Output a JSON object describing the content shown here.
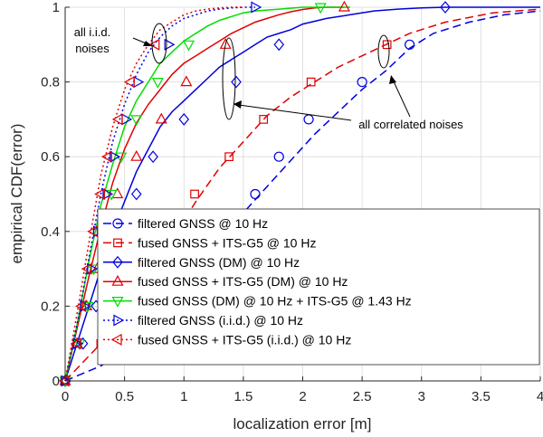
{
  "chart_data": {
    "type": "line",
    "xlabel": "localization error [m]",
    "ylabel": "empirical CDF(error)",
    "xlim": [
      0,
      4
    ],
    "ylim": [
      0,
      1
    ],
    "grid": true,
    "legend_position": "lower-right",
    "xticks": [
      {
        "v": 0,
        "label": "0"
      },
      {
        "v": 0.5,
        "label": "0.5"
      },
      {
        "v": 1,
        "label": "1"
      },
      {
        "v": 1.5,
        "label": "1.5"
      },
      {
        "v": 2,
        "label": "2"
      },
      {
        "v": 2.5,
        "label": "2.5"
      },
      {
        "v": 3,
        "label": "3"
      },
      {
        "v": 3.5,
        "label": "3.5"
      },
      {
        "v": 4,
        "label": "4"
      }
    ],
    "yticks": [
      {
        "v": 0,
        "label": "0"
      },
      {
        "v": 0.2,
        "label": "0.2"
      },
      {
        "v": 0.4,
        "label": "0.4"
      },
      {
        "v": 0.6,
        "label": "0.6"
      },
      {
        "v": 0.8,
        "label": "0.8"
      },
      {
        "v": 1,
        "label": "1"
      }
    ],
    "series": [
      {
        "name": "filtered GNSS @ 10 Hz",
        "color": "#0000e0",
        "dash": "dashed",
        "marker": "circle",
        "x": [
          0,
          0.15,
          0.3,
          0.5,
          0.7,
          0.9,
          1.1,
          1.3,
          1.5,
          1.7,
          1.9,
          2.1,
          2.3,
          2.5,
          2.7,
          2.9,
          3.1,
          3.4,
          3.7,
          4.0
        ],
        "y": [
          0,
          0.02,
          0.04,
          0.08,
          0.14,
          0.22,
          0.3,
          0.38,
          0.45,
          0.52,
          0.59,
          0.66,
          0.72,
          0.78,
          0.83,
          0.89,
          0.93,
          0.96,
          0.98,
          0.99
        ],
        "markers": [
          [
            0,
            0
          ],
          [
            0.54,
            0.1
          ],
          [
            0.9,
            0.2
          ],
          [
            1.17,
            0.3
          ],
          [
            1.4,
            0.4
          ],
          [
            1.6,
            0.5
          ],
          [
            1.8,
            0.6
          ],
          [
            2.05,
            0.7
          ],
          [
            2.5,
            0.8
          ],
          [
            2.9,
            0.9
          ]
        ]
      },
      {
        "name": "fused GNSS + ITS-G5 @ 10 Hz",
        "color": "#e00000",
        "dash": "dashed",
        "marker": "square",
        "x": [
          0,
          0.15,
          0.3,
          0.5,
          0.7,
          0.9,
          1.1,
          1.3,
          1.5,
          1.7,
          1.9,
          2.1,
          2.3,
          2.5,
          2.7,
          2.9,
          3.2,
          3.6,
          4.0
        ],
        "y": [
          0,
          0.05,
          0.1,
          0.18,
          0.28,
          0.38,
          0.48,
          0.57,
          0.64,
          0.71,
          0.76,
          0.8,
          0.84,
          0.87,
          0.9,
          0.93,
          0.96,
          0.985,
          0.995
        ],
        "markers": [
          [
            0,
            0
          ],
          [
            0.3,
            0.1
          ],
          [
            0.53,
            0.2
          ],
          [
            0.72,
            0.3
          ],
          [
            0.9,
            0.4
          ],
          [
            1.09,
            0.5
          ],
          [
            1.38,
            0.6
          ],
          [
            1.67,
            0.7
          ],
          [
            2.07,
            0.8
          ],
          [
            2.71,
            0.9
          ]
        ]
      },
      {
        "name": "filtered GNSS (DM) @ 10 Hz",
        "color": "#0000e0",
        "dash": "solid",
        "marker": "diamond",
        "x": [
          0,
          0.1,
          0.2,
          0.3,
          0.4,
          0.5,
          0.6,
          0.7,
          0.8,
          0.9,
          1.0,
          1.1,
          1.2,
          1.3,
          1.4,
          1.5,
          1.6,
          1.7,
          1.8,
          1.9,
          2.0,
          2.2,
          2.4,
          2.6,
          2.8,
          3.0,
          3.2,
          3.6,
          4.0
        ],
        "y": [
          0,
          0.1,
          0.2,
          0.3,
          0.4,
          0.48,
          0.56,
          0.62,
          0.68,
          0.72,
          0.75,
          0.78,
          0.81,
          0.84,
          0.86,
          0.88,
          0.9,
          0.92,
          0.93,
          0.94,
          0.955,
          0.97,
          0.98,
          0.99,
          0.995,
          0.998,
          1.0,
          1.0,
          1.0
        ],
        "markers": [
          [
            0,
            0
          ],
          [
            0.15,
            0.1
          ],
          [
            0.26,
            0.2
          ],
          [
            0.37,
            0.3
          ],
          [
            0.46,
            0.4
          ],
          [
            0.6,
            0.5
          ],
          [
            0.74,
            0.6
          ],
          [
            1.0,
            0.7
          ],
          [
            1.44,
            0.8
          ],
          [
            1.8,
            0.9
          ],
          [
            3.2,
            1.0
          ]
        ]
      },
      {
        "name": "fused GNSS + ITS-G5 (DM) @ 10 Hz",
        "color": "#e00000",
        "dash": "solid",
        "marker": "triangle-up",
        "x": [
          0,
          0.1,
          0.2,
          0.3,
          0.4,
          0.5,
          0.6,
          0.7,
          0.8,
          0.9,
          1.0,
          1.1,
          1.2,
          1.3,
          1.4,
          1.5,
          1.6,
          1.7,
          1.8,
          1.9,
          2.0,
          2.1,
          2.2,
          2.35
        ],
        "y": [
          0,
          0.14,
          0.28,
          0.41,
          0.53,
          0.62,
          0.69,
          0.74,
          0.78,
          0.82,
          0.85,
          0.87,
          0.89,
          0.91,
          0.93,
          0.945,
          0.96,
          0.97,
          0.98,
          0.988,
          0.994,
          0.998,
          1.0,
          1.0
        ],
        "markers": [
          [
            0,
            0
          ],
          [
            0.1,
            0.1
          ],
          [
            0.18,
            0.2
          ],
          [
            0.27,
            0.3
          ],
          [
            0.33,
            0.4
          ],
          [
            0.44,
            0.5
          ],
          [
            0.6,
            0.6
          ],
          [
            0.81,
            0.7
          ],
          [
            1.02,
            0.8
          ],
          [
            1.35,
            0.9
          ],
          [
            2.35,
            1.0
          ]
        ]
      },
      {
        "name": "fused GNSS (DM) @ 10 Hz + ITS-G5 @ 1.43 Hz",
        "color": "#00dd00",
        "dash": "solid",
        "marker": "triangle-down",
        "x": [
          0,
          0.1,
          0.2,
          0.3,
          0.4,
          0.5,
          0.6,
          0.7,
          0.8,
          0.9,
          1.0,
          1.1,
          1.2,
          1.3,
          1.4,
          1.5,
          1.6,
          1.8,
          2.0,
          2.2,
          2.4
        ],
        "y": [
          0,
          0.15,
          0.32,
          0.47,
          0.58,
          0.68,
          0.75,
          0.8,
          0.85,
          0.88,
          0.91,
          0.93,
          0.95,
          0.965,
          0.975,
          0.985,
          0.99,
          0.995,
          1.0,
          1.0,
          1.0
        ],
        "markers": [
          [
            0,
            0
          ],
          [
            0.12,
            0.1
          ],
          [
            0.19,
            0.2
          ],
          [
            0.24,
            0.3
          ],
          [
            0.3,
            0.4
          ],
          [
            0.39,
            0.5
          ],
          [
            0.47,
            0.6
          ],
          [
            0.6,
            0.7
          ],
          [
            0.78,
            0.8
          ],
          [
            1.04,
            0.9
          ],
          [
            2.15,
            1.0
          ]
        ]
      },
      {
        "name": "filtered GNSS (i.i.d.) @ 10 Hz",
        "color": "#0000e0",
        "dash": "dotted",
        "marker": "triangle-right",
        "x": [
          0,
          0.1,
          0.2,
          0.3,
          0.4,
          0.5,
          0.6,
          0.7,
          0.8,
          0.9,
          1.0,
          1.1,
          1.2,
          1.3,
          1.4,
          1.5,
          1.6
        ],
        "y": [
          0,
          0.15,
          0.33,
          0.5,
          0.64,
          0.74,
          0.82,
          0.88,
          0.92,
          0.95,
          0.97,
          0.98,
          0.99,
          0.995,
          0.998,
          1.0,
          1.0
        ],
        "markers": [
          [
            0,
            0
          ],
          [
            0.1,
            0.1
          ],
          [
            0.16,
            0.2
          ],
          [
            0.22,
            0.3
          ],
          [
            0.27,
            0.4
          ],
          [
            0.35,
            0.5
          ],
          [
            0.41,
            0.6
          ],
          [
            0.51,
            0.7
          ],
          [
            0.61,
            0.8
          ],
          [
            0.87,
            0.9
          ],
          [
            1.6,
            1.0
          ]
        ]
      },
      {
        "name": "fused GNSS + ITS-G5 (i.i.d.) @ 10 Hz",
        "color": "#e00000",
        "dash": "dotted",
        "marker": "triangle-left",
        "x": [
          0,
          0.1,
          0.2,
          0.3,
          0.4,
          0.5,
          0.6,
          0.7,
          0.8,
          0.9,
          1.0,
          1.1,
          1.2,
          1.3,
          1.4,
          1.5
        ],
        "y": [
          0,
          0.18,
          0.37,
          0.55,
          0.68,
          0.78,
          0.85,
          0.9,
          0.94,
          0.96,
          0.98,
          0.99,
          0.995,
          0.998,
          1.0,
          1.0
        ],
        "markers": [
          [
            0,
            0
          ],
          [
            0.1,
            0.1
          ],
          [
            0.14,
            0.2
          ],
          [
            0.19,
            0.3
          ],
          [
            0.24,
            0.4
          ],
          [
            0.3,
            0.5
          ],
          [
            0.36,
            0.6
          ],
          [
            0.45,
            0.7
          ],
          [
            0.55,
            0.8
          ],
          [
            0.76,
            0.9
          ]
        ]
      }
    ],
    "annotations": [
      {
        "text": "all i.i.d.",
        "line2": "noises"
      },
      {
        "text": "all correlated noises"
      }
    ]
  }
}
